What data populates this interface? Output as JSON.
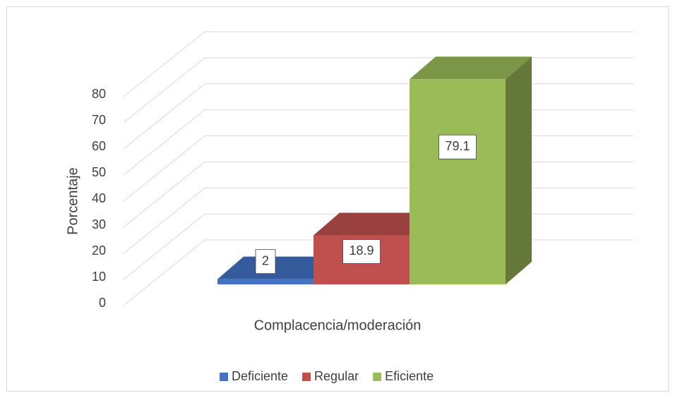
{
  "chart_data": {
    "type": "bar3d",
    "ylabel": "Porcentaje",
    "categories": [
      "Complacencia/moderación"
    ],
    "series": [
      {
        "name": "Deficiente",
        "color": "#4472c4",
        "values": [
          2
        ]
      },
      {
        "name": "Regular",
        "color": "#c0504d",
        "values": [
          18.9
        ]
      },
      {
        "name": "Eficiente",
        "color": "#9bbb59",
        "values": [
          79.1
        ]
      }
    ],
    "ylim": [
      0,
      80
    ],
    "yticks": [
      0,
      10,
      20,
      30,
      40,
      50,
      60,
      70,
      80
    ],
    "grid": true,
    "legend": "bottom"
  }
}
